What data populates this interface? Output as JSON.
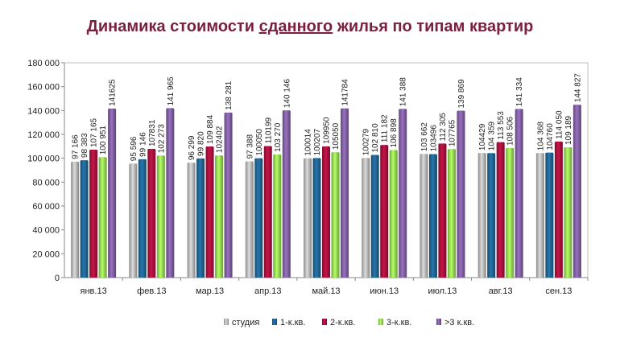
{
  "title_parts": [
    "Динамика стоимости ",
    "сданного",
    " жилья по типам квартир"
  ],
  "chart_data": {
    "type": "bar",
    "title": "Динамика стоимости сданного жилья по типам квартир",
    "categories": [
      "янв.13",
      "фев.13",
      "мар.13",
      "апр.13",
      "май.13",
      "июн.13",
      "июл.13",
      "авг.13",
      "сен.13"
    ],
    "ylim": [
      0,
      180000
    ],
    "yticks": [
      0,
      20000,
      40000,
      60000,
      80000,
      100000,
      120000,
      140000,
      160000,
      180000
    ],
    "ytick_labels": [
      "0",
      "20 000",
      "40 000",
      "60 000",
      "80 000",
      "100 000",
      "120 000",
      "140 000",
      "160 000",
      "180 000"
    ],
    "grid": false,
    "legend_position": "bottom",
    "series": [
      {
        "name": "студия",
        "color": "#b0b0b0",
        "values": [
          97166,
          95596,
          96299,
          97388,
          100014,
          100279,
          103662,
          104429,
          104368
        ],
        "labels": [
          "97 166",
          "95 596",
          "96 299",
          "97 388",
          "100014",
          "100279",
          "103 662",
          "104429",
          "104 368"
        ]
      },
      {
        "name": "1-к.кв.",
        "color": "#1f5f8b",
        "values": [
          98383,
          99146,
          99820,
          100050,
          100207,
          102810,
          103496,
          104359,
          104760
        ],
        "labels": [
          "98 383",
          "99 146",
          "99 820",
          "100050",
          "100207",
          "102 810",
          "103496",
          "104 359",
          "104760"
        ]
      },
      {
        "name": "2-к.кв.",
        "color": "#a0103a",
        "values": [
          107165,
          107831,
          109884,
          110199,
          109950,
          111182,
          112305,
          113553,
          114050
        ],
        "labels": [
          "107 165",
          "107831",
          "109 884",
          "110199",
          "109950",
          "111 182",
          "112 305",
          "113 553",
          "114 050"
        ]
      },
      {
        "name": "3-к.кв.",
        "color": "#8fd14f",
        "values": [
          100951,
          102273,
          102402,
          103270,
          105050,
          106898,
          107765,
          108506,
          109189
        ],
        "labels": [
          "100 951",
          "102 273",
          "102402",
          "103 270",
          "105050",
          "106 898",
          "107765",
          "108 506",
          "109 189"
        ]
      },
      {
        "name": ">3 к.кв.",
        "color": "#7a5a9a",
        "values": [
          141625,
          141965,
          138281,
          140146,
          141784,
          141388,
          139869,
          141334,
          144827
        ],
        "labels": [
          "141625",
          "141 965",
          "138 281",
          "140 146",
          "141784",
          "141 388",
          "139 869",
          "141 334",
          "144 827"
        ]
      }
    ]
  }
}
